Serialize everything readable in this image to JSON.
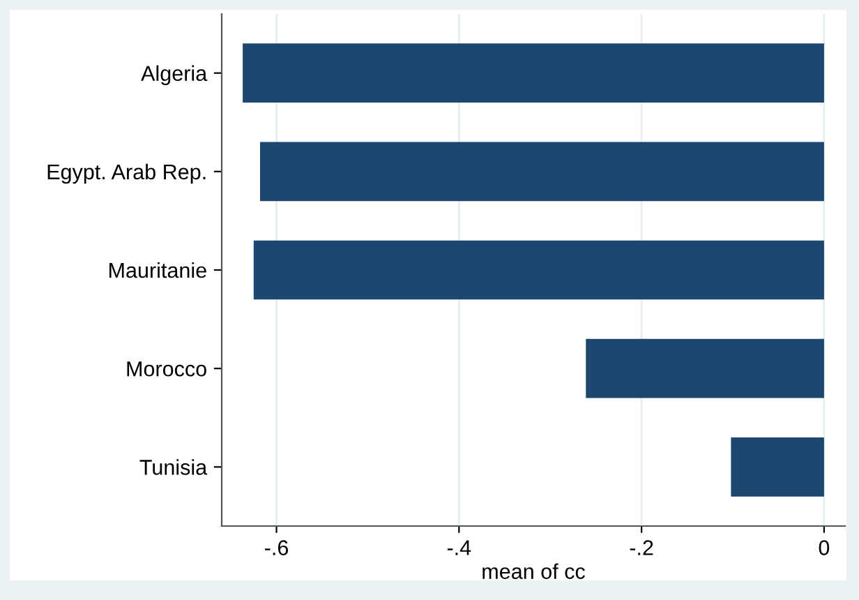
{
  "chart_data": {
    "type": "bar",
    "orientation": "horizontal",
    "xlabel": "mean of cc",
    "categories": [
      "Algeria",
      "Egypt. Arab Rep.",
      "Mauritanie",
      "Morocco",
      "Tunisia"
    ],
    "values": [
      -0.637,
      -0.618,
      -0.625,
      -0.261,
      -0.102
    ],
    "color": "#1c4870",
    "xlim": [
      -0.66,
      0.023
    ],
    "xticks": [
      {
        "value": -0.6,
        "label": "-.6"
      },
      {
        "value": -0.4,
        "label": "-.4"
      },
      {
        "value": -0.2,
        "label": "-.2"
      },
      0
    ],
    "grid": "x"
  }
}
